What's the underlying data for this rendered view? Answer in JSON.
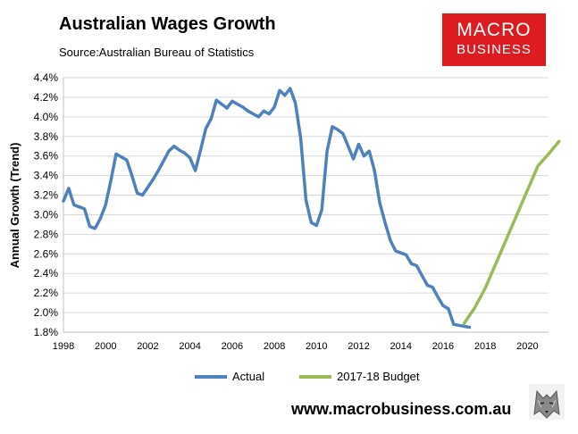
{
  "header": {
    "title": "Australian Wages Growth",
    "source": "Source:Australian Bureau of Statistics"
  },
  "logo": {
    "line1": "MACRO",
    "line2": "BUSINESS",
    "color": "#dd1c22"
  },
  "footer": {
    "url": "www.macrobusiness.com.au"
  },
  "chart_data": {
    "type": "line",
    "title": "Australian Wages Growth",
    "ylabel": "Annual Growth (Trend)",
    "xlabel": "",
    "xlim": [
      1998,
      2021
    ],
    "ylim": [
      1.8,
      4.4
    ],
    "y_ticks": [
      "4.4%",
      "4.2%",
      "4.0%",
      "3.8%",
      "3.6%",
      "3.4%",
      "3.2%",
      "3.0%",
      "2.8%",
      "2.6%",
      "2.4%",
      "2.2%",
      "2.0%",
      "1.8%"
    ],
    "x_ticks": [
      "1998",
      "2000",
      "2002",
      "2004",
      "2006",
      "2008",
      "2010",
      "2012",
      "2014",
      "2016",
      "2018",
      "2020"
    ],
    "grid": "horizontal",
    "legend": "bottom",
    "series": [
      {
        "name": "Actual",
        "color": "#4f81bd",
        "points": [
          [
            1998.0,
            3.14
          ],
          [
            1998.25,
            3.27
          ],
          [
            1998.5,
            3.1
          ],
          [
            1998.75,
            3.08
          ],
          [
            1999.0,
            3.06
          ],
          [
            1999.25,
            2.88
          ],
          [
            1999.5,
            2.86
          ],
          [
            1999.75,
            2.96
          ],
          [
            2000.0,
            3.1
          ],
          [
            2000.25,
            3.35
          ],
          [
            2000.5,
            3.62
          ],
          [
            2000.75,
            3.59
          ],
          [
            2001.0,
            3.56
          ],
          [
            2001.25,
            3.4
          ],
          [
            2001.5,
            3.22
          ],
          [
            2001.75,
            3.2
          ],
          [
            2002.0,
            3.28
          ],
          [
            2002.25,
            3.36
          ],
          [
            2002.5,
            3.45
          ],
          [
            2002.75,
            3.55
          ],
          [
            2003.0,
            3.65
          ],
          [
            2003.25,
            3.7
          ],
          [
            2003.5,
            3.66
          ],
          [
            2003.75,
            3.63
          ],
          [
            2004.0,
            3.58
          ],
          [
            2004.25,
            3.45
          ],
          [
            2004.5,
            3.66
          ],
          [
            2004.75,
            3.88
          ],
          [
            2005.0,
            3.98
          ],
          [
            2005.25,
            4.17
          ],
          [
            2005.5,
            4.13
          ],
          [
            2005.75,
            4.09
          ],
          [
            2006.0,
            4.16
          ],
          [
            2006.25,
            4.13
          ],
          [
            2006.5,
            4.1
          ],
          [
            2006.75,
            4.06
          ],
          [
            2007.0,
            4.03
          ],
          [
            2007.25,
            4.0
          ],
          [
            2007.5,
            4.06
          ],
          [
            2007.75,
            4.03
          ],
          [
            2008.0,
            4.1
          ],
          [
            2008.25,
            4.27
          ],
          [
            2008.5,
            4.22
          ],
          [
            2008.75,
            4.29
          ],
          [
            2009.0,
            4.14
          ],
          [
            2009.25,
            3.78
          ],
          [
            2009.5,
            3.15
          ],
          [
            2009.75,
            2.92
          ],
          [
            2010.0,
            2.89
          ],
          [
            2010.25,
            3.05
          ],
          [
            2010.5,
            3.65
          ],
          [
            2010.75,
            3.9
          ],
          [
            2011.0,
            3.87
          ],
          [
            2011.25,
            3.83
          ],
          [
            2011.5,
            3.7
          ],
          [
            2011.75,
            3.57
          ],
          [
            2012.0,
            3.72
          ],
          [
            2012.25,
            3.6
          ],
          [
            2012.5,
            3.65
          ],
          [
            2012.75,
            3.45
          ],
          [
            2013.0,
            3.12
          ],
          [
            2013.25,
            2.92
          ],
          [
            2013.5,
            2.74
          ],
          [
            2013.75,
            2.63
          ],
          [
            2014.0,
            2.61
          ],
          [
            2014.25,
            2.59
          ],
          [
            2014.5,
            2.5
          ],
          [
            2014.75,
            2.48
          ],
          [
            2015.0,
            2.38
          ],
          [
            2015.25,
            2.28
          ],
          [
            2015.5,
            2.26
          ],
          [
            2015.75,
            2.16
          ],
          [
            2016.0,
            2.07
          ],
          [
            2016.25,
            2.04
          ],
          [
            2016.5,
            1.88
          ],
          [
            2016.75,
            1.87
          ],
          [
            2017.0,
            1.86
          ],
          [
            2017.25,
            1.85
          ]
        ]
      },
      {
        "name": "2017-18 Budget",
        "color": "#9bbb59",
        "points": [
          [
            2017.0,
            1.89
          ],
          [
            2017.5,
            2.05
          ],
          [
            2018.0,
            2.25
          ],
          [
            2018.5,
            2.5
          ],
          [
            2019.0,
            2.75
          ],
          [
            2019.5,
            3.0
          ],
          [
            2020.0,
            3.25
          ],
          [
            2020.5,
            3.5
          ],
          [
            2021.0,
            3.62
          ],
          [
            2021.5,
            3.75
          ]
        ]
      }
    ]
  }
}
